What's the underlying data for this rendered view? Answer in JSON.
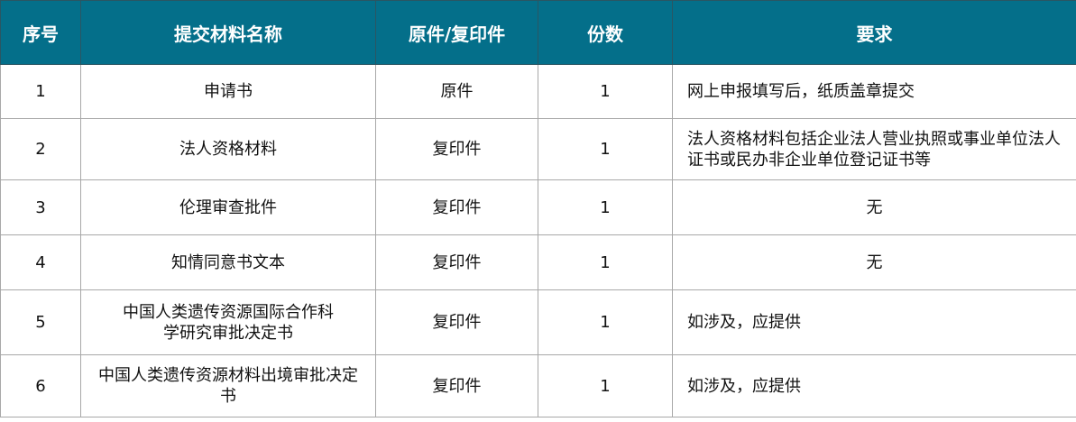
{
  "header_color": "#046f8a",
  "headers": [
    "序号",
    "提交材料名称",
    "原件/复印件",
    "份数",
    "要求"
  ],
  "rows": [
    {
      "no": "1",
      "name": "申请书",
      "type": "原件",
      "count": "1",
      "req": "网上申报填写后，纸质盖章提交",
      "req_align": "left"
    },
    {
      "no": "2",
      "name": "法人资格材料",
      "type": "复印件",
      "count": "1",
      "req": "法人资格材料包括企业法人营业执照或事业单位法人证书或民办非企业单位登记证书等",
      "req_align": "left"
    },
    {
      "no": "3",
      "name": "伦理审查批件",
      "type": "复印件",
      "count": "1",
      "req": "无",
      "req_align": "center"
    },
    {
      "no": "4",
      "name": "知情同意书文本",
      "type": "复印件",
      "count": "1",
      "req": "无",
      "req_align": "center"
    },
    {
      "no": "5",
      "name": "中国人类遗传资源国际合作科学研究审批决定书",
      "type": "复印件",
      "count": "1",
      "req": "如涉及，应提供",
      "req_align": "left"
    },
    {
      "no": "6",
      "name": "中国人类遗传资源材料出境审批决定书",
      "type": "复印件",
      "count": "1",
      "req": "如涉及，应提供",
      "req_align": "left"
    }
  ]
}
